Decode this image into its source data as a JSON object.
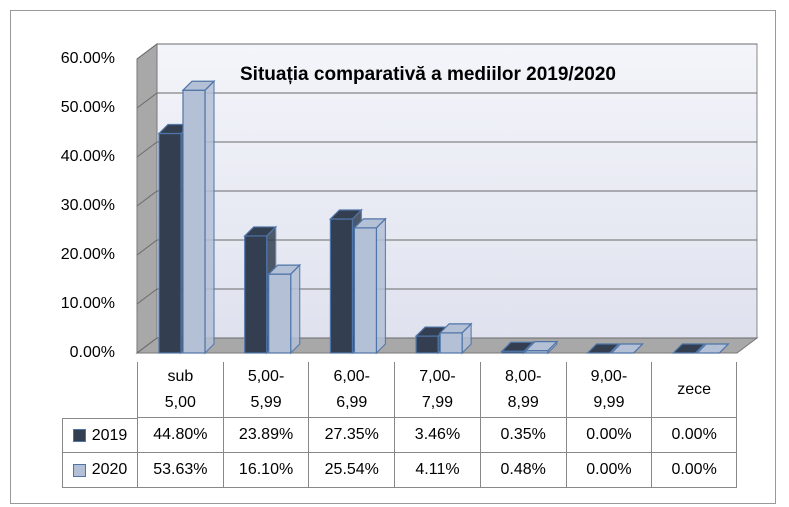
{
  "chart_data": {
    "type": "bar3d",
    "title": "Situația comparativă a mediilor 2019/2020",
    "categories": [
      "sub 5,00",
      "5,00-5,99",
      "6,00-6,99",
      "7,00-7,99",
      "8,00-8,99",
      "9,00-9,99",
      "zece"
    ],
    "series": [
      {
        "name": "2019",
        "color": "#333f50",
        "values": [
          44.8,
          23.89,
          27.35,
          3.46,
          0.35,
          0,
          0
        ],
        "value_labels": [
          "44.80%",
          "23.89%",
          "27.35%",
          "3.46%",
          "0.35%",
          "0.00%",
          "0.00%"
        ]
      },
      {
        "name": "2020",
        "color": "#b4c0d6",
        "values": [
          53.63,
          16.1,
          25.54,
          4.11,
          0.48,
          0,
          0
        ],
        "value_labels": [
          "53.63%",
          "16.10%",
          "25.54%",
          "4.11%",
          "0.48%",
          "0.00%",
          "0.00%"
        ]
      }
    ],
    "ylim": [
      0,
      60
    ],
    "yticks": [
      {
        "value": 0,
        "label": "0.00%"
      },
      {
        "value": 10,
        "label": "10.00%"
      },
      {
        "value": 20,
        "label": "20.00%"
      },
      {
        "value": 30,
        "label": "30.00%"
      },
      {
        "value": 40,
        "label": "40.00%"
      },
      {
        "value": 50,
        "label": "50.00%"
      },
      {
        "value": 60,
        "label": "60.00%"
      }
    ],
    "grid": true
  }
}
